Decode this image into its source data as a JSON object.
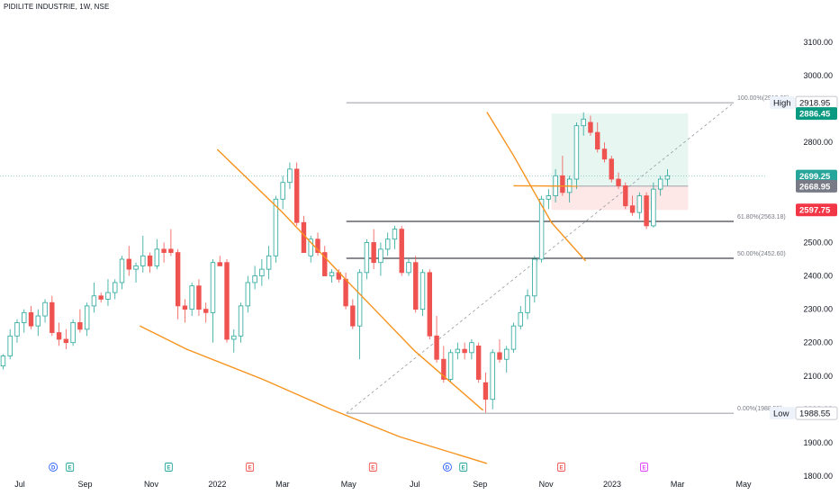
{
  "header": {
    "title": "PIDILITE INDUSTRIE, 1W, NSE"
  },
  "colors": {
    "up": "#26a69a",
    "down": "#ef5350",
    "trendline": "#f7931e",
    "grid": "#e0e3eb",
    "axis_text": "#131722",
    "fib": "#787b86",
    "target_zone": "#e6f5f1",
    "stop_zone": "#fde4e4"
  },
  "chart_data": {
    "type": "candlestick",
    "x_axis": {
      "ticks": [
        {
          "label": "Jul",
          "t": 0
        },
        {
          "label": "Sep",
          "t": 8.6
        },
        {
          "label": "Nov",
          "t": 17.3
        },
        {
          "label": "2022",
          "t": 26
        },
        {
          "label": "Mar",
          "t": 34.6
        },
        {
          "label": "May",
          "t": 43.3
        },
        {
          "label": "Jul",
          "t": 52
        },
        {
          "label": "Sep",
          "t": 60.6
        },
        {
          "label": "Nov",
          "t": 69.3
        },
        {
          "label": "2023",
          "t": 78
        },
        {
          "label": "Mar",
          "t": 86.6
        },
        {
          "label": "May",
          "t": 95.3
        }
      ],
      "range": [
        -0.5,
        100
      ]
    },
    "y_axis": {
      "ticks": [
        3100,
        3000,
        2900,
        2800,
        2700,
        2600,
        2500,
        2400,
        2300,
        2200,
        2100,
        2000,
        1900,
        1800
      ],
      "tick_labels": [
        "3100.00",
        "3000.00",
        "2900.00",
        "2800.00",
        "2700.00",
        "2600.00",
        "2500.00",
        "2400.00",
        "2300.00",
        "2200.00",
        "2100.00",
        "2000.00",
        "1900.00",
        "1800.00"
      ],
      "range": [
        1785,
        3140
      ]
    },
    "candles": [
      [
        2130,
        2165,
        2120,
        2160
      ],
      [
        2160,
        2240,
        2150,
        2220
      ],
      [
        2220,
        2270,
        2200,
        2260
      ],
      [
        2260,
        2300,
        2230,
        2290
      ],
      [
        2290,
        2310,
        2240,
        2250
      ],
      [
        2250,
        2300,
        2220,
        2280
      ],
      [
        2280,
        2330,
        2260,
        2320
      ],
      [
        2320,
        2340,
        2220,
        2230
      ],
      [
        2230,
        2260,
        2190,
        2210
      ],
      [
        2210,
        2240,
        2180,
        2200
      ],
      [
        2200,
        2270,
        2190,
        2260
      ],
      [
        2260,
        2300,
        2230,
        2240
      ],
      [
        2240,
        2320,
        2220,
        2310
      ],
      [
        2310,
        2380,
        2290,
        2340
      ],
      [
        2340,
        2350,
        2320,
        2330
      ],
      [
        2330,
        2390,
        2310,
        2350
      ],
      [
        2350,
        2390,
        2330,
        2380
      ],
      [
        2380,
        2460,
        2360,
        2450
      ],
      [
        2450,
        2490,
        2400,
        2420
      ],
      [
        2420,
        2440,
        2380,
        2430
      ],
      [
        2430,
        2520,
        2410,
        2460
      ],
      [
        2460,
        2470,
        2410,
        2430
      ],
      [
        2430,
        2510,
        2420,
        2480
      ],
      [
        2480,
        2500,
        2440,
        2470
      ],
      [
        2480,
        2540,
        2460,
        2470
      ],
      [
        2470,
        2480,
        2270,
        2310
      ],
      [
        2310,
        2330,
        2260,
        2300
      ],
      [
        2300,
        2380,
        2280,
        2370
      ],
      [
        2370,
        2390,
        2280,
        2300
      ],
      [
        2300,
        2320,
        2260,
        2290
      ],
      [
        2290,
        2450,
        2200,
        2440
      ],
      [
        2440,
        2460,
        2430,
        2430
      ],
      [
        2440,
        2450,
        2200,
        2210
      ],
      [
        2210,
        2240,
        2170,
        2220
      ],
      [
        2220,
        2320,
        2200,
        2310
      ],
      [
        2310,
        2400,
        2290,
        2380
      ],
      [
        2380,
        2430,
        2360,
        2400
      ],
      [
        2400,
        2450,
        2370,
        2420
      ],
      [
        2420,
        2490,
        2390,
        2460
      ],
      [
        2460,
        2640,
        2440,
        2630
      ],
      [
        2630,
        2700,
        2600,
        2680
      ],
      [
        2680,
        2740,
        2660,
        2720
      ],
      [
        2720,
        2740,
        2550,
        2560
      ],
      [
        2560,
        2580,
        2480,
        2470
      ],
      [
        2460,
        2520,
        2440,
        2510
      ],
      [
        2510,
        2530,
        2460,
        2470
      ],
      [
        2470,
        2490,
        2400,
        2400
      ],
      [
        2400,
        2420,
        2380,
        2410
      ],
      [
        2410,
        2420,
        2380,
        2390
      ],
      [
        2390,
        2410,
        2300,
        2310
      ],
      [
        2310,
        2330,
        2240,
        2250
      ],
      [
        2250,
        2420,
        2150,
        2410
      ],
      [
        2410,
        2510,
        2390,
        2500
      ],
      [
        2500,
        2540,
        2420,
        2440
      ],
      [
        2440,
        2500,
        2400,
        2480
      ],
      [
        2480,
        2530,
        2460,
        2510
      ],
      [
        2510,
        2550,
        2480,
        2540
      ],
      [
        2540,
        2550,
        2400,
        2410
      ],
      [
        2410,
        2450,
        2400,
        2440
      ],
      [
        2440,
        2460,
        2290,
        2300
      ],
      [
        2300,
        2420,
        2280,
        2410
      ],
      [
        2410,
        2420,
        2210,
        2220
      ],
      [
        2220,
        2280,
        2140,
        2150
      ],
      [
        2150,
        2190,
        2080,
        2090
      ],
      [
        2090,
        2180,
        2080,
        2170
      ],
      [
        2170,
        2200,
        2150,
        2180
      ],
      [
        2180,
        2200,
        2150,
        2170
      ],
      [
        2170,
        2210,
        2150,
        2200
      ],
      [
        2190,
        2200,
        2080,
        2090
      ],
      [
        2080,
        2110,
        1990,
        2030
      ],
      [
        2030,
        2180,
        2000,
        2170
      ],
      [
        2170,
        2210,
        2140,
        2150
      ],
      [
        2150,
        2190,
        2110,
        2180
      ],
      [
        2180,
        2260,
        2170,
        2250
      ],
      [
        2250,
        2310,
        2240,
        2290
      ],
      [
        2290,
        2360,
        2270,
        2340
      ],
      [
        2340,
        2460,
        2320,
        2450
      ],
      [
        2450,
        2640,
        2440,
        2630
      ],
      [
        2630,
        2660,
        2600,
        2640
      ],
      [
        2640,
        2720,
        2620,
        2700
      ],
      [
        2700,
        2760,
        2640,
        2650
      ],
      [
        2650,
        2700,
        2620,
        2690
      ],
      [
        2690,
        2860,
        2660,
        2850
      ],
      [
        2850,
        2890,
        2820,
        2870
      ],
      [
        2860,
        2880,
        2820,
        2830
      ],
      [
        2830,
        2860,
        2770,
        2780
      ],
      [
        2780,
        2800,
        2740,
        2750
      ],
      [
        2750,
        2760,
        2680,
        2690
      ],
      [
        2690,
        2710,
        2660,
        2670
      ],
      [
        2670,
        2680,
        2600,
        2610
      ],
      [
        2610,
        2640,
        2580,
        2590
      ],
      [
        2590,
        2650,
        2570,
        2640
      ],
      [
        2640,
        2650,
        2540,
        2550
      ],
      [
        2550,
        2680,
        2545,
        2660
      ],
      [
        2660,
        2700,
        2640,
        2690
      ],
      [
        2690,
        2720,
        2670,
        2700
      ]
    ],
    "series": [
      {
        "type": "trendline",
        "points": [
          [
            26,
            2779
          ],
          [
            34.6,
            2590
          ],
          [
            43.3,
            2380
          ],
          [
            52,
            2175
          ],
          [
            61,
            1997
          ]
        ]
      },
      {
        "type": "trendline",
        "points": [
          [
            15.8,
            2250
          ],
          [
            22,
            2180
          ],
          [
            32,
            2090
          ],
          [
            41,
            2000
          ],
          [
            50,
            1918
          ],
          [
            61.5,
            1838
          ]
        ]
      },
      {
        "type": "trendline",
        "points": [
          [
            61.5,
            2891
          ],
          [
            65,
            2761
          ],
          [
            70,
            2560
          ],
          [
            74.5,
            2445
          ]
        ]
      },
      {
        "type": "trendline",
        "points": [
          [
            65,
            2670
          ],
          [
            73.5,
            2669
          ]
        ]
      }
    ],
    "fib_levels": [
      {
        "label": "100.00%(2918.95)",
        "value": 2918.95
      },
      {
        "label": "61.80%(2563.18)",
        "value": 2563.18
      },
      {
        "label": "50.00%(2452.60)",
        "value": 2452.6
      },
      {
        "label": "0.00%(1988.55)",
        "value": 1988.55
      }
    ],
    "price_labels": [
      {
        "text": "2918.95",
        "value": 2918.95,
        "style": "outline"
      },
      {
        "text": "High",
        "value": 2918.95,
        "style": "tag"
      },
      {
        "text": "2886.45",
        "value": 2886.45,
        "style": "green"
      },
      {
        "text": "2699.25",
        "value": 2699.25,
        "style": "teal"
      },
      {
        "text": "2668.95",
        "value": 2668.95,
        "style": "grey"
      },
      {
        "text": "2597.75",
        "value": 2597.75,
        "style": "red"
      },
      {
        "text": "1988.55",
        "value": 1988.55,
        "style": "outline"
      },
      {
        "text": "Low",
        "value": 1988.55,
        "style": "tag"
      }
    ],
    "position_tool": {
      "t0": 70,
      "t1": 88,
      "target": 2886.45,
      "entry": 2668.95,
      "stop": 2597.75
    },
    "events": [
      {
        "t": 4.4,
        "letter": "D",
        "kind": "dividend"
      },
      {
        "t": 6.6,
        "letter": "E",
        "kind": "earnings"
      },
      {
        "t": 19.6,
        "letter": "E",
        "kind": "earnings"
      },
      {
        "t": 30.3,
        "letter": "E",
        "kind": "earnings-past"
      },
      {
        "t": 46.5,
        "letter": "E",
        "kind": "earnings-past"
      },
      {
        "t": 56.3,
        "letter": "D",
        "kind": "dividend"
      },
      {
        "t": 58.4,
        "letter": "E",
        "kind": "earnings"
      },
      {
        "t": 71.3,
        "letter": "E",
        "kind": "earnings-past"
      },
      {
        "t": 82.2,
        "letter": "E",
        "kind": "earnings-future"
      }
    ],
    "grid": false,
    "legend": "none"
  }
}
